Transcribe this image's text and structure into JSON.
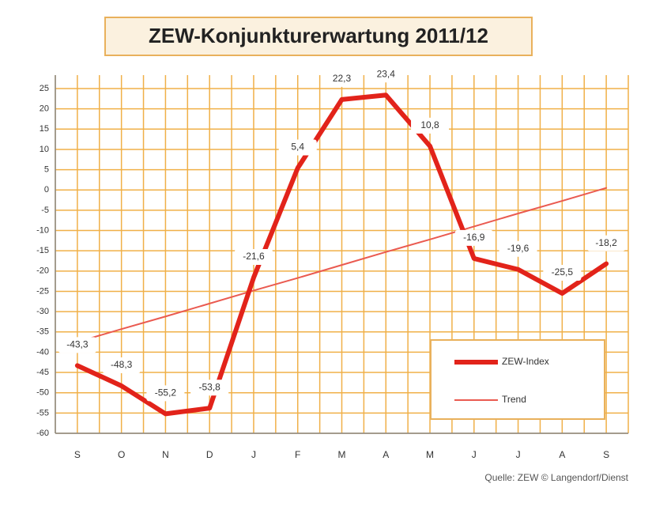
{
  "chart_data": {
    "type": "line",
    "title": "ZEW-Konjunkturerwartung 2011/12",
    "source": "Quelle: ZEW © Langendorf/Dienst",
    "categories": [
      "S",
      "O",
      "N",
      "D",
      "J",
      "F",
      "M",
      "A",
      "M",
      "J",
      "J",
      "A",
      "S"
    ],
    "series": [
      {
        "name": "ZEW-Index",
        "color": "#e2231a",
        "values": [
          -43.3,
          -48.3,
          -55.2,
          -53.8,
          -21.6,
          5.4,
          22.3,
          23.4,
          10.8,
          -16.9,
          -19.6,
          -25.5,
          -18.2
        ],
        "value_labels": [
          "-43,3",
          "-48,3",
          "-55,2",
          "-53,8",
          "-21,6",
          "5,4",
          "22,3",
          "23,4",
          "10,8",
          "-16,9",
          "-19,6",
          "-25,5",
          "-18,2"
        ]
      },
      {
        "name": "Trend",
        "color": "#ea5a50",
        "values": [
          -37.5,
          -34.3,
          -31.2,
          -28,
          -24.8,
          -21.7,
          -18.5,
          -15.3,
          -12.2,
          -9,
          -5.8,
          -2.7,
          0.5
        ]
      }
    ],
    "ylim": [
      -60,
      25
    ],
    "yticks": [
      25,
      20,
      15,
      10,
      5,
      0,
      -5,
      -10,
      -15,
      -20,
      -25,
      -30,
      -35,
      -40,
      -45,
      -50,
      -55,
      -60
    ],
    "grid": true,
    "legend": "lower right"
  }
}
